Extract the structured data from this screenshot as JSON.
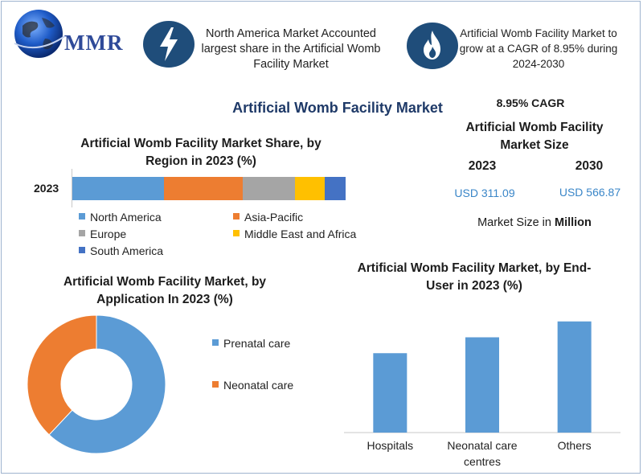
{
  "brand": {
    "logo_text": "MMR"
  },
  "header": {
    "highlight_1": "North America Market Accounted largest share in the Artificial Womb Facility Market",
    "highlight_2": "Artificial Womb Facility Market to grow at a CAGR of 8.95% during 2024-2030",
    "icon_1": "lightning-bolt-icon",
    "icon_2": "flame-icon"
  },
  "main_title": "Artificial Womb Facility Market",
  "market_size": {
    "cagr": "8.95% CAGR",
    "title": "Artificial Womb Facility Market Size",
    "year_start": "2023",
    "year_end": "2030",
    "value_start": "USD 311.09",
    "value_end": "USD 566.87",
    "units_prefix": "Market Size in ",
    "units_bold": "Million"
  },
  "colors": {
    "blue": "#5b9bd5",
    "orange": "#ed7d31",
    "gray": "#a5a5a5",
    "yellow": "#ffc000",
    "dark_blue": "#4472c4",
    "title_navy": "#1f3a68",
    "usd_blue": "#3a86c8"
  },
  "chart_data": [
    {
      "type": "bar",
      "stacked": true,
      "orientation": "horizontal",
      "title": "Artificial Womb Facility Market Share, by Region in 2023 (%)",
      "categories": [
        "2023"
      ],
      "series": [
        {
          "name": "North America",
          "values": [
            33.5
          ],
          "color": "#5b9bd5"
        },
        {
          "name": "Asia-Pacific",
          "values": [
            29
          ],
          "color": "#ed7d31"
        },
        {
          "name": "Europe",
          "values": [
            19
          ],
          "color": "#a5a5a5"
        },
        {
          "name": "Middle East and Africa",
          "values": [
            11
          ],
          "color": "#ffc000"
        },
        {
          "name": "South America",
          "values": [
            7.5
          ],
          "color": "#4472c4"
        }
      ],
      "legend": "bottom"
    },
    {
      "type": "pie",
      "donut": true,
      "title": "Artificial Womb Facility Market, by Application In 2023 (%)",
      "slices": [
        {
          "name": "Prenatal care",
          "value": 62,
          "color": "#5b9bd5"
        },
        {
          "name": "Neonatal care",
          "value": 38,
          "color": "#ed7d31"
        }
      ],
      "legend": "right"
    },
    {
      "type": "bar",
      "title": "Artificial Womb Facility Market, by End-User in 2023 (%)",
      "categories": [
        "Hospitals",
        "Neonatal care centres",
        "Others"
      ],
      "category_lines": [
        [
          "Hospitals"
        ],
        [
          "Neonatal care",
          "centres"
        ],
        [
          "Others"
        ]
      ],
      "values": [
        25,
        30,
        35
      ],
      "ylim": [
        0,
        40
      ],
      "color": "#5b9bd5",
      "grid": false
    }
  ]
}
